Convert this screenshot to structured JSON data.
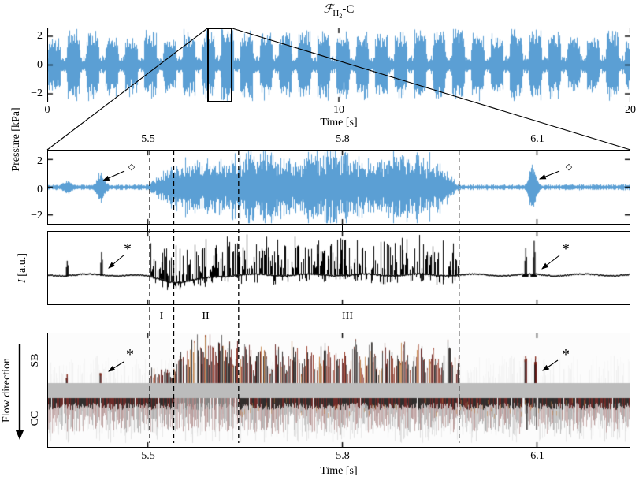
{
  "figure": {
    "title": {
      "f_symbol": "ℱ",
      "subscript_h": "H",
      "subscript_2": "2",
      "suffix": "-C"
    },
    "colors": {
      "signal_blue": "#5b9fd4",
      "signal_black": "#000000",
      "gray_band": "#bcbcbc",
      "dark_red": "#5a0c0a",
      "orange": "#c07a3a",
      "background": "#ffffff"
    }
  },
  "panel_overview": {
    "ylabel": "Pressure [kPa]",
    "yticks": [
      "2",
      "0",
      "−2"
    ],
    "xticks": [
      "0",
      "10",
      "20"
    ],
    "xlabel": "Time [s]"
  },
  "panel_zoom": {
    "top_xticks": [
      "5.5",
      "5.8",
      "6.1"
    ],
    "yticks": [
      "2",
      "0",
      "−2"
    ],
    "diamond_marker": "◇"
  },
  "panel_intensity": {
    "ylabel_i": "I",
    "ylabel_units": " [a.u.]",
    "asterisk_marker": "*"
  },
  "region_labels": {
    "one": "I",
    "two": "II",
    "three": "III"
  },
  "panel_streak": {
    "row_top": "SB",
    "row_bottom": "CC",
    "flow_label": "Flow direction",
    "xticks": [
      "5.5",
      "5.8",
      "6.1"
    ],
    "xlabel": "Time [s]",
    "asterisk_marker": "*"
  },
  "chart_data": [
    {
      "id": "pressure_overview",
      "type": "line",
      "color": "#5b9fd4",
      "title": "F_H2-C",
      "xlabel": "Time [s]",
      "ylabel": "Pressure [kPa]",
      "xlim": [
        0,
        20
      ],
      "ylim": [
        -2.6,
        2.6
      ],
      "xticks": [
        0,
        10,
        20
      ],
      "yticks": [
        2,
        0,
        -2
      ],
      "zoom_window_s": [
        5.49,
        6.35
      ],
      "burst_train": {
        "period_s": 0.66,
        "duty": 0.7,
        "amp_high_kpa": 2.1,
        "amp_low_kpa": 0.55
      }
    },
    {
      "id": "pressure_zoom",
      "type": "line",
      "color": "#5b9fd4",
      "xlim": [
        5.345,
        6.244
      ],
      "ylim": [
        -2.7,
        2.7
      ],
      "top_xticks": [
        5.5,
        5.8,
        6.1
      ],
      "yticks": [
        2,
        0,
        -2
      ],
      "quiet_amp_kpa": 0.15,
      "precursor_events": [
        {
          "t_s": 5.375,
          "amp_kpa": 0.3
        },
        {
          "t_s": 5.427,
          "amp_kpa": 0.85
        }
      ],
      "post_event": {
        "t_s": 6.093,
        "amp_kpa": 1.35
      },
      "instability": {
        "onset_s": 5.503,
        "growth_end_s": 5.64,
        "end_s": 5.98,
        "amp_kpa": 1.55
      },
      "dashed_lines_s": [
        5.503,
        5.54,
        5.64,
        5.98
      ]
    },
    {
      "id": "flame_intensity",
      "type": "line",
      "color": "#000000",
      "ylabel": "I [a.u.]",
      "xlim": [
        5.345,
        6.244
      ],
      "precursor_events": [
        {
          "t_s": 5.375,
          "rel_amp": 0.45
        },
        {
          "t_s": 5.428,
          "rel_amp": 0.75
        }
      ],
      "post_events": [
        {
          "t_s": 6.082,
          "rel_amp": 0.9
        },
        {
          "t_s": 6.095,
          "rel_amp": 1.15
        }
      ],
      "burst": {
        "onset_s": 5.503,
        "end_s": 5.98
      }
    },
    {
      "id": "streak_image",
      "type": "heatmap",
      "xlim": [
        5.345,
        6.244
      ],
      "rows": [
        "SB",
        "CC"
      ],
      "xticks": [
        5.5,
        5.8,
        6.1
      ],
      "xlabel": "Time [s]",
      "regions": {
        "I": [
          5.503,
          5.54
        ],
        "II": [
          5.54,
          5.64
        ],
        "III": [
          5.64,
          5.98
        ]
      },
      "sb_active_s": [
        5.503,
        5.98
      ],
      "sb_events_s": [
        5.375,
        5.427,
        6.082,
        6.097
      ],
      "palette": [
        "#141110",
        "#5a0c0a",
        "#96321e",
        "#c07a3a"
      ],
      "band_color": "#bcbcbc"
    }
  ]
}
